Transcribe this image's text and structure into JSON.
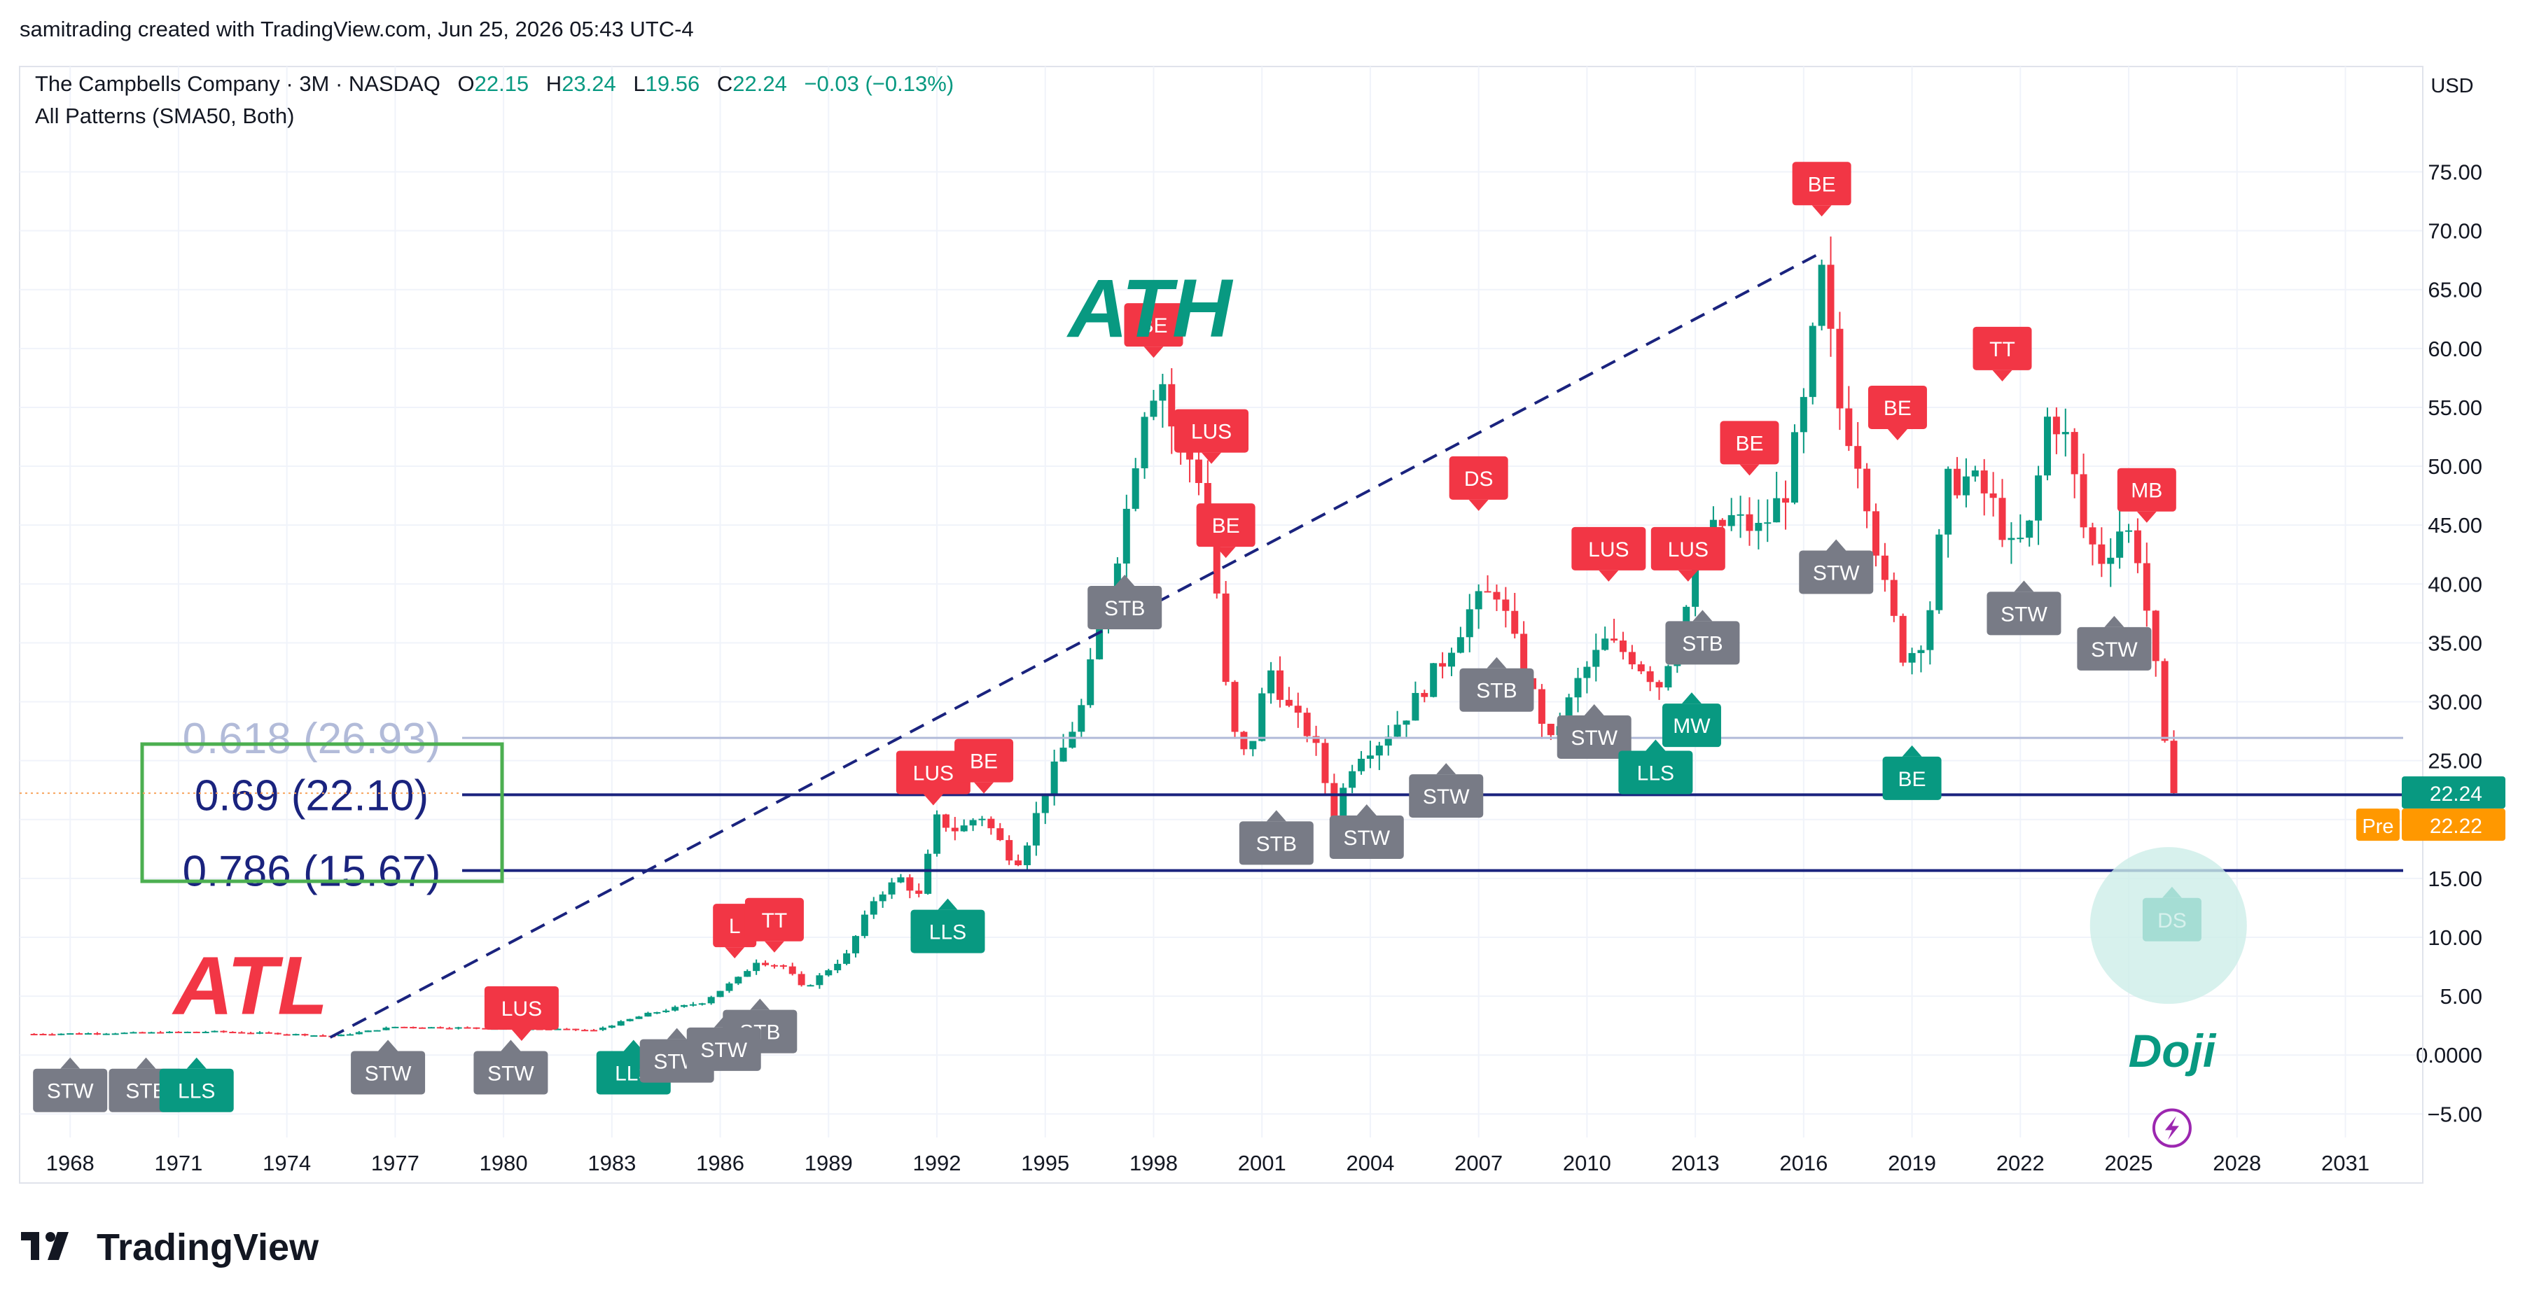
{
  "header": {
    "credit": "samitrading created with TradingView.com, Jun 25, 2026 05:43 UTC-4",
    "symbol_line": "The Campbells Company · 3M · NASDAQ",
    "ohlc": {
      "o_label": "O",
      "o": "22.15",
      "h_label": "H",
      "h": "23.24",
      "l_label": "L",
      "l": "19.56",
      "c_label": "C",
      "c": "22.24",
      "change": "−0.03 (−0.13%)"
    },
    "indicator": "All Patterns (SMA50, Both)",
    "currency": "USD"
  },
  "brand": {
    "name": "TradingView",
    "logo_icon": "tradingview-logo-icon"
  },
  "colors": {
    "bull": "#089981",
    "bear": "#f23645",
    "neutral_tag": "#787b86",
    "fib_light": "#b2bbd9",
    "fib_dark": "#1a237e",
    "box": "#4caf50",
    "pre": "#ff9800",
    "grid": "#f0f3fa"
  },
  "chart_data": {
    "type": "candlestick",
    "x_axis": {
      "ticks": [
        "1968",
        "1971",
        "1974",
        "1977",
        "1980",
        "1983",
        "1986",
        "1989",
        "1992",
        "1995",
        "1998",
        "2001",
        "2004",
        "2007",
        "2010",
        "2013",
        "2016",
        "2019",
        "2022",
        "2025",
        "2028",
        "2031"
      ],
      "range": [
        1966.6,
        2032.6
      ]
    },
    "y_axis": {
      "ticks": [
        "75.00",
        "70.00",
        "65.00",
        "60.00",
        "55.00",
        "50.00",
        "45.00",
        "40.00",
        "35.00",
        "30.00",
        "25.00",
        "20.00",
        "15.00",
        "10.00",
        "5.00",
        "0.0000",
        "−5.00"
      ],
      "range": [
        -7,
        78
      ]
    },
    "price_labels": {
      "last": "22.24",
      "pre_label": "Pre",
      "pre": "22.22"
    },
    "fib_levels": [
      {
        "label": "0.618 (26.93)",
        "value": 26.93
      },
      {
        "label": "0.69 (22.10)",
        "value": 22.1
      },
      {
        "label": "0.786 (15.67)",
        "value": 15.67
      }
    ],
    "trendline": {
      "from": {
        "x": 1975.2,
        "y": 1.5
      },
      "to": {
        "x": 2016.4,
        "y": 68.0
      },
      "style": "dashed"
    },
    "annotations": [
      {
        "text": "ATH",
        "x": 1997.9,
        "y": 61.0,
        "color": "bull"
      },
      {
        "text": "ATL",
        "x": 1973.0,
        "y": 3.5,
        "color": "bear"
      },
      {
        "text": "Doji",
        "x": 2026.2,
        "y": -1.0,
        "color": "bull"
      }
    ],
    "doji_circle": {
      "x": 2026.1,
      "y": 11.0
    },
    "lightning_icon": {
      "name": "lightning-icon",
      "x": 2026.2,
      "y": -6.2
    },
    "pattern_tags": [
      {
        "text": "BE",
        "x": 1998.0,
        "y": 62.0,
        "kind": "bear"
      },
      {
        "text": "LUS",
        "x": 1999.6,
        "y": 53.0,
        "kind": "bear"
      },
      {
        "text": "BE",
        "x": 2000.0,
        "y": 45.0,
        "kind": "bear"
      },
      {
        "text": "STB",
        "x": 1997.2,
        "y": 38.0,
        "kind": "neutral"
      },
      {
        "text": "LUS",
        "x": 1991.9,
        "y": 24.0,
        "kind": "bear"
      },
      {
        "text": "BE",
        "x": 1993.3,
        "y": 25.0,
        "kind": "bear"
      },
      {
        "text": "LLS",
        "x": 1992.3,
        "y": 10.5,
        "kind": "bull"
      },
      {
        "text": "L",
        "x": 1986.4,
        "y": 11.0,
        "kind": "bear"
      },
      {
        "text": "TT",
        "x": 1987.5,
        "y": 11.5,
        "kind": "bear"
      },
      {
        "text": "STB",
        "x": 1987.1,
        "y": 2.0,
        "kind": "neutral"
      },
      {
        "text": "LUS",
        "x": 1980.5,
        "y": 4.0,
        "kind": "bear"
      },
      {
        "text": "STW",
        "x": 1968.0,
        "y": -3.0,
        "kind": "neutral"
      },
      {
        "text": "STB",
        "x": 1970.1,
        "y": -3.0,
        "kind": "neutral"
      },
      {
        "text": "LLS",
        "x": 1971.5,
        "y": -3.0,
        "kind": "bull"
      },
      {
        "text": "STW",
        "x": 1976.8,
        "y": -1.5,
        "kind": "neutral"
      },
      {
        "text": "STW",
        "x": 1980.2,
        "y": -1.5,
        "kind": "neutral"
      },
      {
        "text": "LLS",
        "x": 1983.6,
        "y": -1.5,
        "kind": "bull"
      },
      {
        "text": "STW",
        "x": 1984.8,
        "y": -0.5,
        "kind": "neutral"
      },
      {
        "text": "STW",
        "x": 1986.1,
        "y": 0.5,
        "kind": "neutral"
      },
      {
        "text": "DS",
        "x": 2007.0,
        "y": 49.0,
        "kind": "bear"
      },
      {
        "text": "STB",
        "x": 2001.4,
        "y": 18.0,
        "kind": "neutral"
      },
      {
        "text": "STW",
        "x": 2003.9,
        "y": 18.5,
        "kind": "neutral"
      },
      {
        "text": "STW",
        "x": 2006.1,
        "y": 22.0,
        "kind": "neutral"
      },
      {
        "text": "STB",
        "x": 2007.5,
        "y": 31.0,
        "kind": "neutral"
      },
      {
        "text": "LUS",
        "x": 2010.6,
        "y": 43.0,
        "kind": "bear"
      },
      {
        "text": "LUS",
        "x": 2012.8,
        "y": 43.0,
        "kind": "bear"
      },
      {
        "text": "STW",
        "x": 2010.2,
        "y": 27.0,
        "kind": "neutral"
      },
      {
        "text": "MW",
        "x": 2012.9,
        "y": 28.0,
        "kind": "bull"
      },
      {
        "text": "LLS",
        "x": 2011.9,
        "y": 24.0,
        "kind": "bull"
      },
      {
        "text": "STB",
        "x": 2013.2,
        "y": 35.0,
        "kind": "neutral"
      },
      {
        "text": "BE",
        "x": 2014.5,
        "y": 52.0,
        "kind": "bear"
      },
      {
        "text": "STW",
        "x": 2016.9,
        "y": 41.0,
        "kind": "neutral"
      },
      {
        "text": "BE",
        "x": 2016.5,
        "y": 74.0,
        "kind": "bear"
      },
      {
        "text": "BE",
        "x": 2018.6,
        "y": 55.0,
        "kind": "bear"
      },
      {
        "text": "TT",
        "x": 2021.5,
        "y": 60.0,
        "kind": "bear"
      },
      {
        "text": "BE",
        "x": 2019.0,
        "y": 23.5,
        "kind": "bull"
      },
      {
        "text": "STW",
        "x": 2022.1,
        "y": 37.5,
        "kind": "neutral"
      },
      {
        "text": "STW",
        "x": 2024.6,
        "y": 34.5,
        "kind": "neutral"
      },
      {
        "text": "MB",
        "x": 2025.5,
        "y": 48.0,
        "kind": "bear"
      },
      {
        "text": "DS",
        "x": 2026.2,
        "y": 11.5,
        "kind": "bull"
      }
    ],
    "price_path": [
      [
        1967.0,
        1.8
      ],
      [
        1970.0,
        1.9
      ],
      [
        1972.0,
        2.0
      ],
      [
        1974.0,
        1.8
      ],
      [
        1975.3,
        1.6
      ],
      [
        1977.0,
        2.4
      ],
      [
        1979.5,
        2.3
      ],
      [
        1981.5,
        2.2
      ],
      [
        1982.5,
        2.1
      ],
      [
        1984.0,
        3.5
      ],
      [
        1985.5,
        4.5
      ],
      [
        1986.5,
        6.5
      ],
      [
        1987.0,
        8.0
      ],
      [
        1987.8,
        7.5
      ],
      [
        1988.3,
        5.6
      ],
      [
        1989.5,
        8.5
      ],
      [
        1990.3,
        13.5
      ],
      [
        1991.0,
        15.0
      ],
      [
        1991.5,
        13.5
      ],
      [
        1992.0,
        20.0
      ],
      [
        1992.6,
        19.0
      ],
      [
        1993.2,
        20.5
      ],
      [
        1994.0,
        17.0
      ],
      [
        1994.3,
        16.5
      ],
      [
        1995.0,
        22.5
      ],
      [
        1996.0,
        29.5
      ],
      [
        1996.8,
        40.0
      ],
      [
        1997.3,
        47.0
      ],
      [
        1997.7,
        55.0
      ],
      [
        1998.2,
        58.0
      ],
      [
        1998.6,
        52.0
      ],
      [
        1999.2,
        50.0
      ],
      [
        1999.6,
        44.0
      ],
      [
        2000.1,
        28.0
      ],
      [
        2000.6,
        25.0
      ],
      [
        2001.2,
        33.0
      ],
      [
        2001.8,
        29.0
      ],
      [
        2002.4,
        27.0
      ],
      [
        2003.0,
        20.5
      ],
      [
        2003.6,
        25.5
      ],
      [
        2004.2,
        26.5
      ],
      [
        2005.0,
        29.0
      ],
      [
        2006.0,
        33.5
      ],
      [
        2006.8,
        38.0
      ],
      [
        2007.5,
        39.5
      ],
      [
        2008.2,
        33.0
      ],
      [
        2009.0,
        26.5
      ],
      [
        2009.8,
        32.0
      ],
      [
        2010.5,
        35.0
      ],
      [
        2011.2,
        34.0
      ],
      [
        2012.0,
        31.5
      ],
      [
        2012.7,
        37.5
      ],
      [
        2013.3,
        44.0
      ],
      [
        2014.0,
        45.5
      ],
      [
        2014.8,
        44.5
      ],
      [
        2015.5,
        48.0
      ],
      [
        2016.0,
        55.0
      ],
      [
        2016.5,
        66.0
      ],
      [
        2017.0,
        55.0
      ],
      [
        2017.6,
        50.0
      ],
      [
        2018.2,
        40.0
      ],
      [
        2018.8,
        33.5
      ],
      [
        2019.4,
        36.0
      ],
      [
        2020.0,
        48.5
      ],
      [
        2020.6,
        49.0
      ],
      [
        2021.2,
        47.0
      ],
      [
        2021.8,
        42.5
      ],
      [
        2022.3,
        45.0
      ],
      [
        2022.8,
        55.0
      ],
      [
        2023.3,
        52.0
      ],
      [
        2023.8,
        44.0
      ],
      [
        2024.3,
        42.0
      ],
      [
        2024.8,
        45.0
      ],
      [
        2025.2,
        43.5
      ],
      [
        2025.7,
        34.0
      ],
      [
        2026.0,
        26.0
      ],
      [
        2026.3,
        22.24
      ]
    ]
  }
}
